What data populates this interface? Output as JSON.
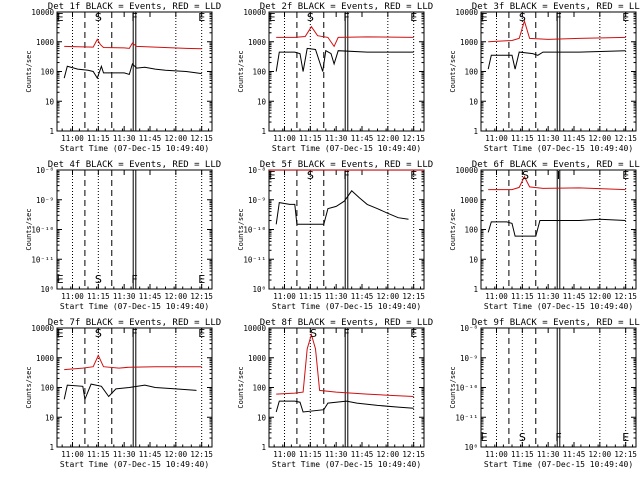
{
  "chart_data": [
    {
      "type": "line",
      "title": "Det 1f BLACK = Events, RED = LLD",
      "xlabel": "Start Time (07-Dec-15 10:49:40)",
      "ylabel": "Counts/sec",
      "x_tick_labels": [
        "11:00",
        "11:15",
        "11:30",
        "11:45",
        "12:00",
        "12:15"
      ],
      "y_tick_labels": [
        "1",
        "10",
        "100",
        "1000",
        "10000"
      ],
      "ylim": [
        1,
        10000
      ],
      "log_y": true,
      "markers": [
        {
          "label": "E",
          "pos": "top"
        },
        {
          "label": "S",
          "pos": "top"
        },
        {
          "label": "F",
          "pos": "top"
        },
        {
          "label": "E",
          "pos": "top"
        }
      ],
      "series": [
        {
          "color": "#d01010",
          "points": [
            [
              10.92,
              700
            ],
            [
              11.05,
              680
            ],
            [
              11.2,
              660
            ],
            [
              11.24,
              1200
            ],
            [
              11.27,
              800
            ],
            [
              11.3,
              640
            ],
            [
              11.5,
              620
            ],
            [
              11.55,
              600
            ],
            [
              11.58,
              900
            ],
            [
              11.62,
              700
            ],
            [
              11.8,
              660
            ],
            [
              12.1,
              600
            ],
            [
              12.25,
              580
            ]
          ]
        },
        {
          "color": "#000000",
          "points": [
            [
              10.92,
              60
            ],
            [
              10.95,
              150
            ],
            [
              11.05,
              120
            ],
            [
              11.15,
              110
            ],
            [
              11.2,
              100
            ],
            [
              11.24,
              60
            ],
            [
              11.28,
              150
            ],
            [
              11.3,
              90
            ],
            [
              11.5,
              90
            ],
            [
              11.55,
              80
            ],
            [
              11.58,
              180
            ],
            [
              11.62,
              130
            ],
            [
              11.7,
              140
            ],
            [
              11.8,
              120
            ],
            [
              11.9,
              110
            ],
            [
              12.1,
              100
            ],
            [
              12.2,
              90
            ],
            [
              12.25,
              85
            ]
          ]
        }
      ]
    },
    {
      "type": "line",
      "title": "Det 2f BLACK = Events, RED = LLD",
      "xlabel": "Start Time (07-Dec-15 10:49:40)",
      "ylabel": "Counts/sec",
      "x_tick_labels": [
        "11:00",
        "11:15",
        "11:30",
        "11:45",
        "12:00",
        "12:15"
      ],
      "y_tick_labels": [
        "1",
        "10",
        "100",
        "1000",
        "10000"
      ],
      "ylim": [
        1,
        10000
      ],
      "log_y": true,
      "markers": [
        {
          "label": "E",
          "pos": "top"
        },
        {
          "label": "S",
          "pos": "top"
        },
        {
          "label": "F",
          "pos": "top"
        },
        {
          "label": "E",
          "pos": "top"
        }
      ],
      "series": [
        {
          "color": "#d01010",
          "points": [
            [
              10.92,
              1400
            ],
            [
              11.1,
              1400
            ],
            [
              11.2,
              1500
            ],
            [
              11.26,
              3200
            ],
            [
              11.32,
              1600
            ],
            [
              11.42,
              1400
            ],
            [
              11.48,
              700
            ],
            [
              11.52,
              1400
            ],
            [
              11.8,
              1450
            ],
            [
              12.25,
              1400
            ]
          ]
        },
        {
          "color": "#000000",
          "points": [
            [
              10.92,
              100
            ],
            [
              10.95,
              450
            ],
            [
              11.1,
              450
            ],
            [
              11.15,
              400
            ],
            [
              11.18,
              100
            ],
            [
              11.22,
              600
            ],
            [
              11.3,
              550
            ],
            [
              11.37,
              100
            ],
            [
              11.4,
              500
            ],
            [
              11.45,
              400
            ],
            [
              11.48,
              180
            ],
            [
              11.52,
              500
            ],
            [
              11.8,
              450
            ],
            [
              12.25,
              450
            ]
          ]
        }
      ]
    },
    {
      "type": "line",
      "title": "Det 3f BLACK = Events, RED = LLD",
      "xlabel": "Start Time (07-Dec-15 10:49:40)",
      "ylabel": "Counts/sec",
      "x_tick_labels": [
        "11:00",
        "11:15",
        "11:30",
        "11:45",
        "12:00",
        "12:15"
      ],
      "y_tick_labels": [
        "1",
        "10",
        "100",
        "1000",
        "10000"
      ],
      "ylim": [
        1,
        10000
      ],
      "log_y": true,
      "markers": [
        {
          "label": "E",
          "pos": "top"
        },
        {
          "label": "S",
          "pos": "top"
        },
        {
          "label": "F",
          "pos": "top"
        },
        {
          "label": "E",
          "pos": "top"
        }
      ],
      "series": [
        {
          "color": "#d01010",
          "points": [
            [
              10.92,
              1000
            ],
            [
              11.15,
              1100
            ],
            [
              11.22,
              1300
            ],
            [
              11.27,
              5000
            ],
            [
              11.32,
              1300
            ],
            [
              11.5,
              1200
            ],
            [
              11.8,
              1300
            ],
            [
              12.25,
              1400
            ]
          ]
        },
        {
          "color": "#000000",
          "points": [
            [
              10.92,
              120
            ],
            [
              10.95,
              350
            ],
            [
              11.15,
              350
            ],
            [
              11.18,
              120
            ],
            [
              11.22,
              450
            ],
            [
              11.35,
              400
            ],
            [
              11.4,
              350
            ],
            [
              11.45,
              450
            ],
            [
              11.8,
              450
            ],
            [
              12.25,
              500
            ]
          ]
        }
      ]
    },
    {
      "type": "line",
      "title": "Det 4f BLACK = Events, RED = LLD",
      "xlabel": "Start Time (07-Dec-15 10:49:40)",
      "ylabel": "Counts/sec",
      "x_tick_labels": [
        "11:00",
        "11:15",
        "11:30",
        "11:45",
        "12:00",
        "12:15"
      ],
      "y_tick_labels": [
        "10⁰",
        "10⁻¹¹",
        "10⁻¹⁰",
        "10⁻⁹",
        "10⁻⁸"
      ],
      "ylim": [
        1,
        10000
      ],
      "log_y": true,
      "markers": [
        {
          "label": "E",
          "pos": "bottom"
        },
        {
          "label": "S",
          "pos": "bottom"
        },
        {
          "label": "F",
          "pos": "bottom"
        },
        {
          "label": "E",
          "pos": "bottom"
        }
      ],
      "series": []
    },
    {
      "type": "line",
      "title": "Det 5f BLACK = Events, RED = LLD",
      "xlabel": "Start Time (07-Dec-15 10:49:40)",
      "ylabel": "Counts/sec",
      "x_tick_labels": [
        "11:00",
        "11:15",
        "11:30",
        "11:45",
        "12:00",
        "12:15"
      ],
      "y_tick_labels": [
        "10⁰",
        "10⁻¹¹",
        "10⁻¹⁰",
        "10⁻⁹",
        "10⁻⁸"
      ],
      "ylim": [
        1,
        10000
      ],
      "log_y": true,
      "markers": [
        {
          "label": "E",
          "pos": "top"
        },
        {
          "label": "S",
          "pos": "top"
        },
        {
          "label": "F",
          "pos": "top"
        },
        {
          "label": "E",
          "pos": "top"
        }
      ],
      "series": [
        {
          "color": "#d01010",
          "points": [
            [
              10.85,
              9950
            ],
            [
              12.35,
              9950
            ]
          ]
        },
        {
          "color": "#000000",
          "points": [
            [
              10.92,
              150
            ],
            [
              10.95,
              800
            ],
            [
              11.05,
              700
            ],
            [
              11.1,
              700
            ],
            [
              11.12,
              150
            ],
            [
              11.38,
              150
            ],
            [
              11.42,
              500
            ],
            [
              11.5,
              600
            ],
            [
              11.58,
              900
            ],
            [
              11.65,
              2000
            ],
            [
              11.72,
              1200
            ],
            [
              11.8,
              700
            ],
            [
              11.9,
              500
            ],
            [
              12.0,
              350
            ],
            [
              12.1,
              250
            ],
            [
              12.2,
              220
            ]
          ]
        }
      ]
    },
    {
      "type": "line",
      "title": "Det 6f BLACK = Events, RED = LLD",
      "xlabel": "Start Time (07-Dec-15 10:49:40)",
      "ylabel": "Counts/sec",
      "x_tick_labels": [
        "11:00",
        "11:15",
        "11:30",
        "11:45",
        "12:00",
        "12:15"
      ],
      "y_tick_labels": [
        "1",
        "10",
        "100",
        "1000",
        "10000"
      ],
      "ylim": [
        1,
        10000
      ],
      "log_y": true,
      "markers": [
        {
          "label": "S",
          "pos": "top"
        },
        {
          "label": "I",
          "pos": "top"
        },
        {
          "label": "E",
          "pos": "top"
        }
      ],
      "series": [
        {
          "color": "#d01010",
          "points": [
            [
              10.92,
              2200
            ],
            [
              11.15,
              2200
            ],
            [
              11.22,
              2600
            ],
            [
              11.27,
              6000
            ],
            [
              11.32,
              2700
            ],
            [
              11.45,
              2400
            ],
            [
              11.8,
              2500
            ],
            [
              12.25,
              2200
            ]
          ]
        },
        {
          "color": "#000000",
          "points": [
            [
              10.92,
              80
            ],
            [
              10.95,
              180
            ],
            [
              11.1,
              180
            ],
            [
              11.15,
              160
            ],
            [
              11.18,
              60
            ],
            [
              11.38,
              60
            ],
            [
              11.42,
              200
            ],
            [
              11.6,
              200
            ],
            [
              11.8,
              200
            ],
            [
              12.0,
              220
            ],
            [
              12.25,
              200
            ]
          ]
        }
      ]
    },
    {
      "type": "line",
      "title": "Det 7f BLACK = Events, RED = LLD",
      "xlabel": "Start Time (07-Dec-15 10:49:40)",
      "ylabel": "Counts/sec",
      "x_tick_labels": [
        "11:00",
        "11:15",
        "11:30",
        "11:45",
        "12:00",
        "12:15"
      ],
      "y_tick_labels": [
        "1",
        "10",
        "100",
        "1000",
        "10000"
      ],
      "ylim": [
        1,
        10000
      ],
      "log_y": true,
      "markers": [
        {
          "label": "E",
          "pos": "top"
        },
        {
          "label": "S",
          "pos": "top"
        },
        {
          "label": "F",
          "pos": "top"
        },
        {
          "label": "E",
          "pos": "top"
        }
      ],
      "series": [
        {
          "color": "#d01010",
          "points": [
            [
              10.92,
              400
            ],
            [
              11.1,
              450
            ],
            [
              11.2,
              500
            ],
            [
              11.25,
              1200
            ],
            [
              11.3,
              500
            ],
            [
              11.45,
              450
            ],
            [
              11.55,
              480
            ],
            [
              11.8,
              500
            ],
            [
              12.25,
              500
            ]
          ]
        },
        {
          "color": "#000000",
          "points": [
            [
              10.92,
              40
            ],
            [
              10.95,
              120
            ],
            [
              11.1,
              110
            ],
            [
              11.12,
              40
            ],
            [
              11.18,
              130
            ],
            [
              11.28,
              110
            ],
            [
              11.35,
              50
            ],
            [
              11.42,
              90
            ],
            [
              11.55,
              100
            ],
            [
              11.7,
              120
            ],
            [
              11.8,
              100
            ],
            [
              12.0,
              90
            ],
            [
              12.2,
              80
            ]
          ]
        }
      ]
    },
    {
      "type": "line",
      "title": "Det 8f BLACK = Events, RED = LLD",
      "xlabel": "Start Time (07-Dec-15 10:49:40)",
      "ylabel": "Counts/sec",
      "x_tick_labels": [
        "11:00",
        "11:15",
        "11:30",
        "11:45",
        "12:00",
        "12:15"
      ],
      "y_tick_labels": [
        "1",
        "10",
        "100",
        "1000",
        "10000"
      ],
      "ylim": [
        1,
        10000
      ],
      "log_y": true,
      "markers": [
        {
          "label": "S",
          "pos": "top"
        },
        {
          "label": "F",
          "pos": "top"
        },
        {
          "label": "E",
          "pos": "top"
        }
      ],
      "series": [
        {
          "color": "#d01010",
          "points": [
            [
              10.92,
              60
            ],
            [
              11.1,
              65
            ],
            [
              11.18,
              70
            ],
            [
              11.22,
              2000
            ],
            [
              11.26,
              6000
            ],
            [
              11.3,
              2000
            ],
            [
              11.34,
              80
            ],
            [
              11.5,
              70
            ],
            [
              11.8,
              60
            ],
            [
              12.0,
              55
            ],
            [
              12.25,
              50
            ]
          ]
        },
        {
          "color": "#000000",
          "points": [
            [
              10.92,
              15
            ],
            [
              10.95,
              35
            ],
            [
              11.1,
              35
            ],
            [
              11.15,
              32
            ],
            [
              11.18,
              15
            ],
            [
              11.38,
              18
            ],
            [
              11.42,
              30
            ],
            [
              11.6,
              35
            ],
            [
              11.7,
              30
            ],
            [
              11.9,
              25
            ],
            [
              12.1,
              22
            ],
            [
              12.25,
              20
            ]
          ]
        }
      ]
    },
    {
      "type": "line",
      "title": "Det 9f BLACK = Events, RED = LLD",
      "xlabel": "Start Time (07-Dec-15 10:49:40)",
      "ylabel": "Counts/sec",
      "x_tick_labels": [
        "11:00",
        "11:15",
        "11:30",
        "11:45",
        "12:00",
        "12:15"
      ],
      "y_tick_labels": [
        "10⁰",
        "10⁻¹¹",
        "10⁻¹⁰",
        "10⁻⁹",
        "10⁻⁸"
      ],
      "ylim": [
        1,
        10000
      ],
      "log_y": true,
      "markers": [
        {
          "label": "E",
          "pos": "bottom"
        },
        {
          "label": "S",
          "pos": "bottom"
        },
        {
          "label": "F",
          "pos": "bottom"
        },
        {
          "label": "E",
          "pos": "bottom"
        }
      ],
      "series": []
    }
  ]
}
